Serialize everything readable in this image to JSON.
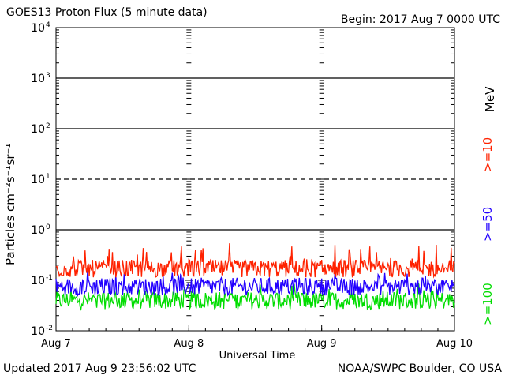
{
  "header": {
    "title": "GOES13 Proton Flux (5 minute data)",
    "begin": "Begin: 2017 Aug 7 0000 UTC"
  },
  "footer": {
    "updated": "Updated 2017 Aug  9 23:56:02 UTC",
    "credit": "NOAA/SWPC Boulder, CO USA"
  },
  "legend": {
    "unit": "MeV",
    "s10": ">=10",
    "s50": ">=50",
    "s100": ">=100"
  },
  "chart_data": {
    "type": "line",
    "title": "GOES13 Proton Flux (5 minute data)",
    "xlabel": "Universal Time",
    "ylabel": "Particles cm⁻²s⁻¹sr⁻¹",
    "yscale": "log",
    "ylim": [
      0.01,
      10000
    ],
    "y_ticks": [
      {
        "label": "10",
        "exp": "-2",
        "value": 0.01
      },
      {
        "label": "10",
        "exp": "-1",
        "value": 0.1
      },
      {
        "label": "10",
        "exp": "0",
        "value": 1
      },
      {
        "label": "10",
        "exp": "1",
        "value": 10
      },
      {
        "label": "10",
        "exp": "2",
        "value": 100
      },
      {
        "label": "10",
        "exp": "3",
        "value": 1000
      },
      {
        "label": "10",
        "exp": "4",
        "value": 10000
      }
    ],
    "threshold_lines": [
      {
        "value": 1,
        "style": "solid"
      },
      {
        "value": 10,
        "style": "dashed"
      },
      {
        "value": 100,
        "style": "solid"
      },
      {
        "value": 1000,
        "style": "solid"
      }
    ],
    "x_ticks": [
      "Aug 7",
      "Aug 8",
      "Aug 9",
      "Aug 10"
    ],
    "x_days": 3,
    "series": [
      {
        "name": ">=10 MeV",
        "color": "#ff2200",
        "typical": 0.17,
        "min": 0.11,
        "max": 0.55
      },
      {
        "name": ">=50 MeV",
        "color": "#2200ff",
        "typical": 0.075,
        "min": 0.045,
        "max": 0.16
      },
      {
        "name": ">=100 MeV",
        "color": "#00dd00",
        "typical": 0.04,
        "min": 0.024,
        "max": 0.09
      }
    ]
  }
}
